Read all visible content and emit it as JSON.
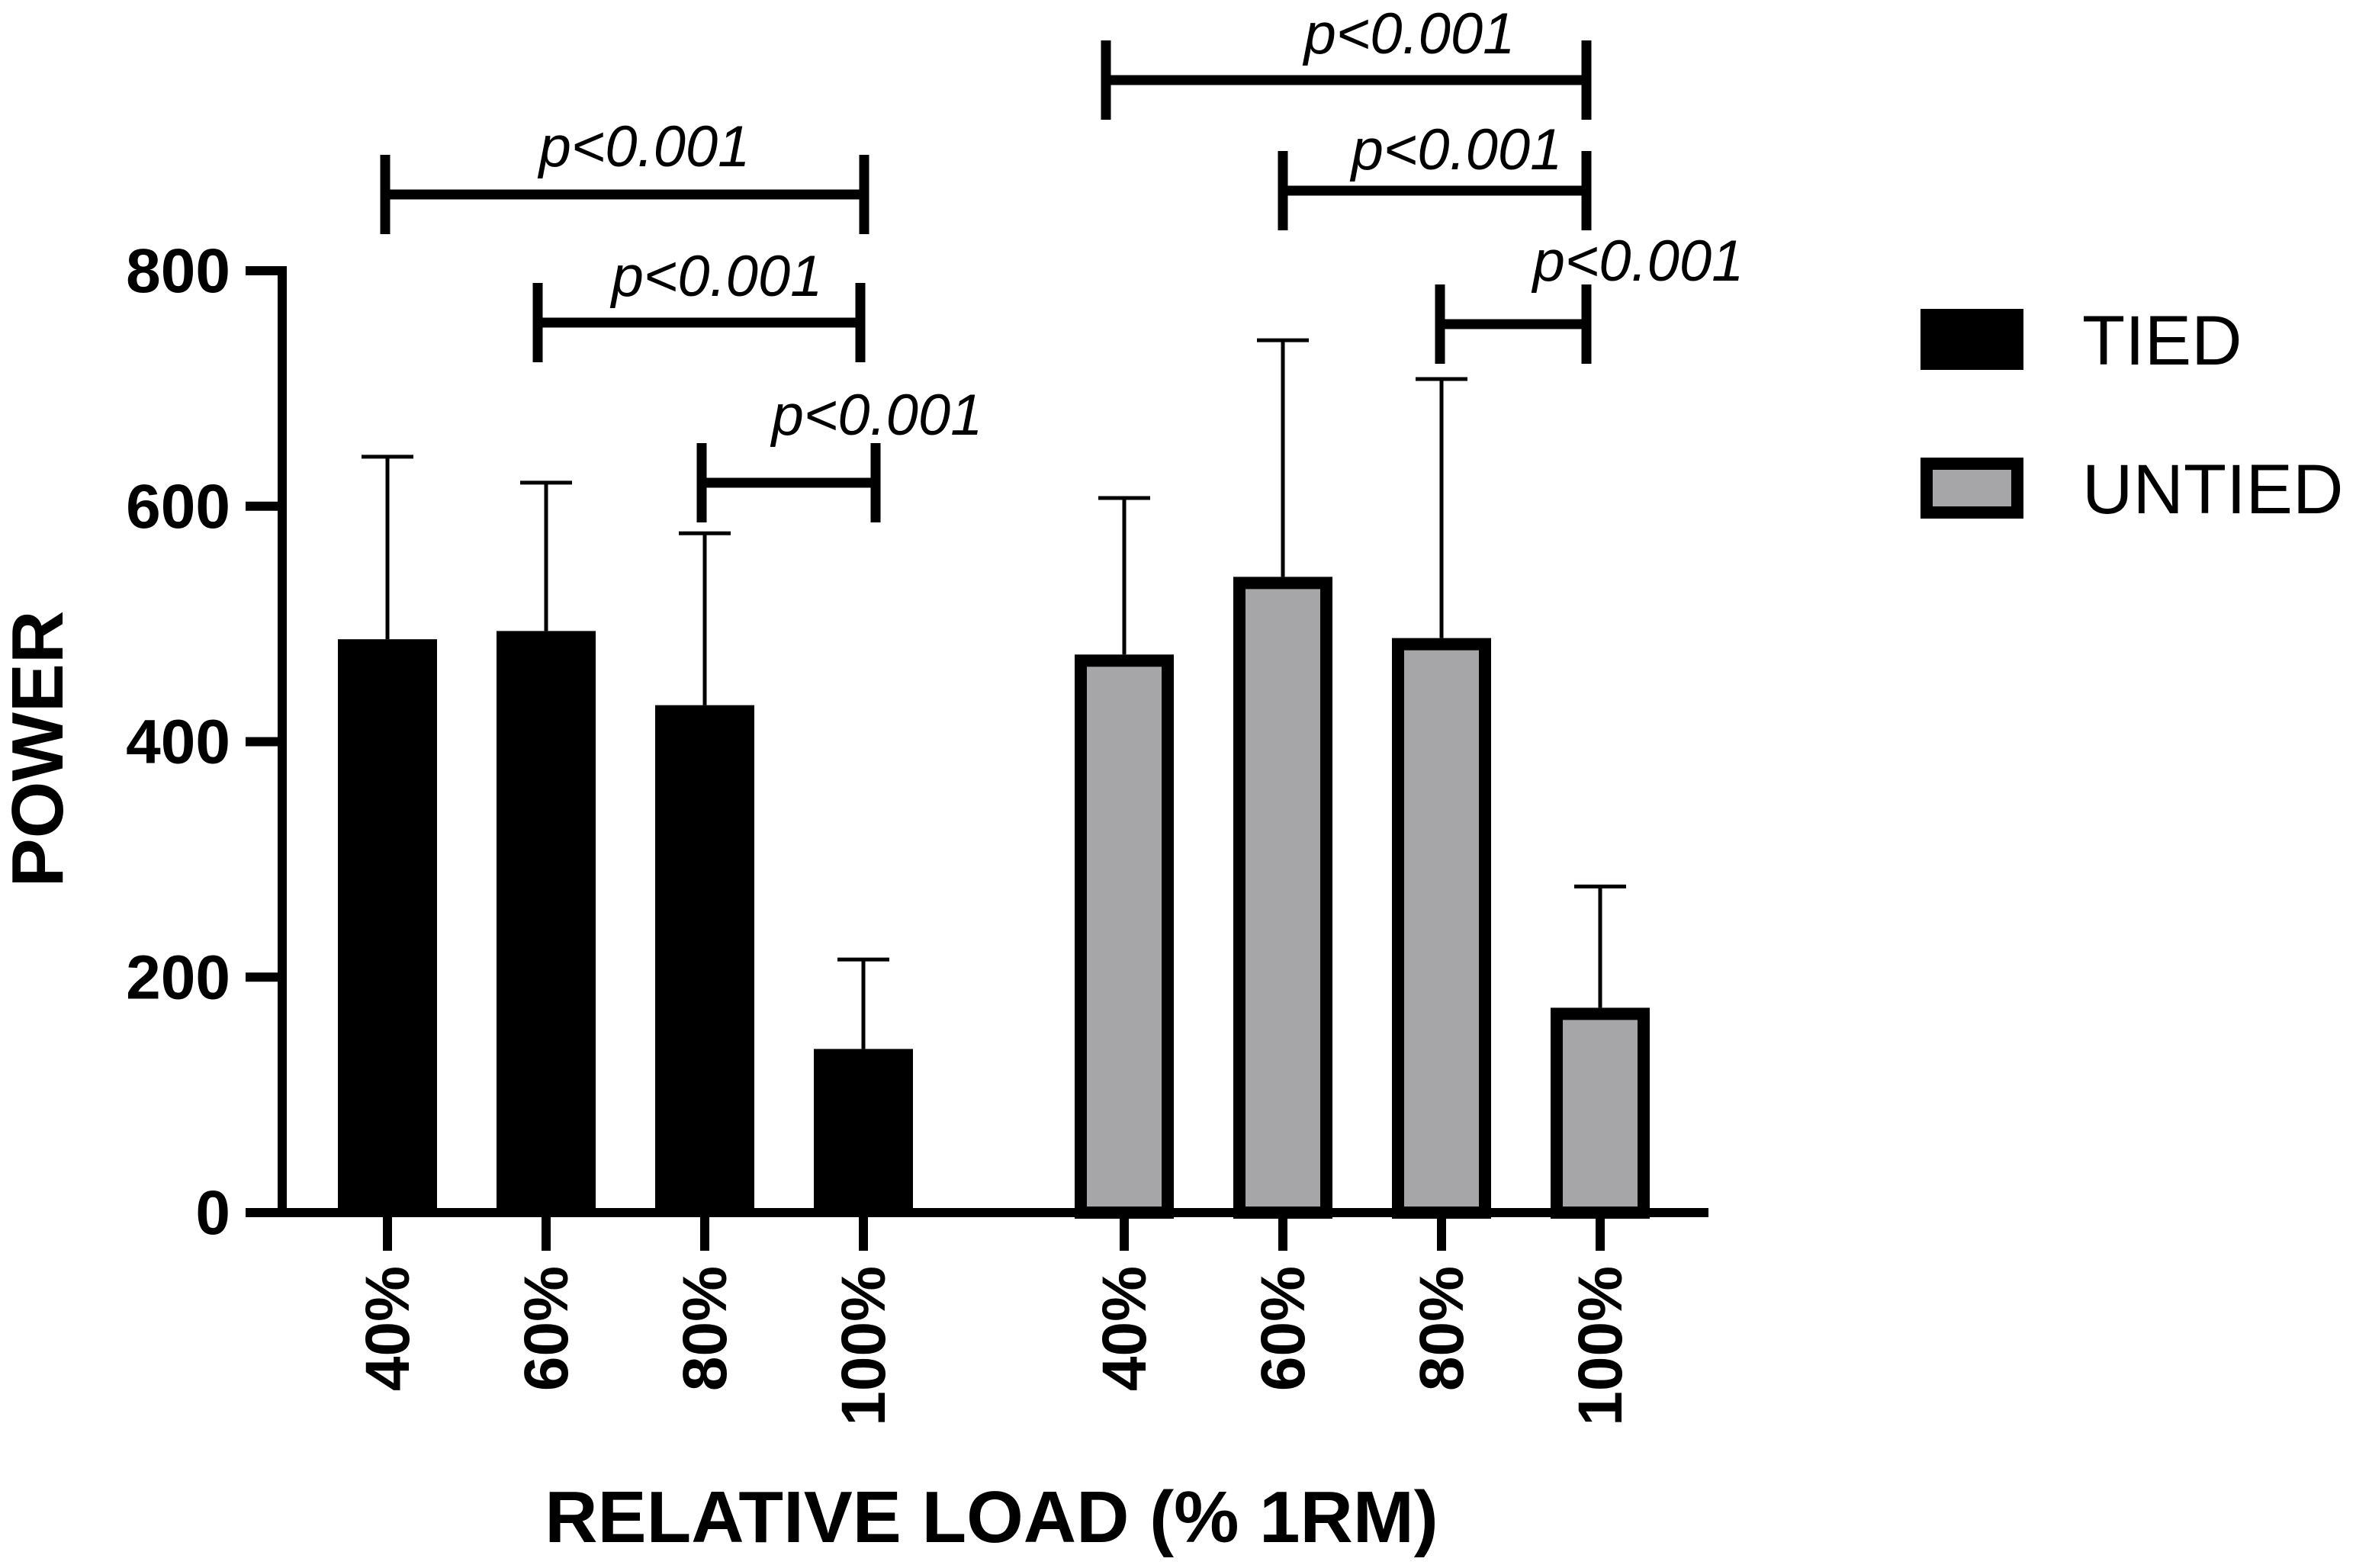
{
  "chart_data": {
    "type": "bar",
    "title": "",
    "xlabel": "RELATIVE LOAD (% 1RM)",
    "ylabel": "POWER",
    "ylim": [
      0,
      800
    ],
    "yticks": [
      "0",
      "200",
      "400",
      "600",
      "800"
    ],
    "grid": false,
    "legend_position": "right",
    "groups": [
      {
        "name": "TIED",
        "color": "#000000",
        "fill": "#000000",
        "categories": [
          "40%",
          "60%",
          "80%",
          "100%"
        ],
        "values": [
          487,
          494,
          431,
          139
        ],
        "error_upper": [
          642,
          620,
          577,
          215
        ]
      },
      {
        "name": "UNTIED",
        "color": "#000000",
        "fill": "#a6a6a8",
        "categories": [
          "40%",
          "60%",
          "80%",
          "100%"
        ],
        "values": [
          474,
          540,
          488,
          174
        ],
        "error_upper": [
          607,
          741,
          708,
          277
        ]
      }
    ],
    "annotations": [
      {
        "group": "TIED",
        "from": "40%",
        "to": "100%",
        "text": "p<0.001"
      },
      {
        "group": "TIED",
        "from": "60%",
        "to": "100%",
        "text": "p<0.001"
      },
      {
        "group": "TIED",
        "from": "80%",
        "to": "100%",
        "text": "p<0.001"
      },
      {
        "group": "UNTIED",
        "from": "40%",
        "to": "100%",
        "text": "p<0.001"
      },
      {
        "group": "UNTIED",
        "from": "60%",
        "to": "100%",
        "text": "p<0.001"
      },
      {
        "group": "UNTIED",
        "from": "80%",
        "to": "100%",
        "text": "p<0.001"
      }
    ]
  }
}
